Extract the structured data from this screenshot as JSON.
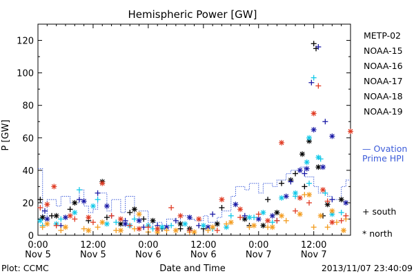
{
  "chart_data": {
    "type": "scatter",
    "title": "Hemispheric Power [GW]",
    "xlabel": "Date and Time",
    "ylabel": "P [GW]",
    "ylim": [
      0,
      130
    ],
    "xlim_hours": [
      0,
      68
    ],
    "yticks": [
      0,
      20,
      40,
      60,
      80,
      100,
      120
    ],
    "xticks": [
      {
        "hour": 0,
        "time": "0:00",
        "date": "Nov 5"
      },
      {
        "hour": 12,
        "time": "12:00",
        "date": "Nov 5"
      },
      {
        "hour": 24,
        "time": "0:00",
        "date": "Nov 6"
      },
      {
        "hour": 36,
        "time": "12:00",
        "date": "Nov 6"
      },
      {
        "hour": 48,
        "time": "0:00",
        "date": "Nov 7"
      },
      {
        "hour": 60,
        "time": "12:00",
        "date": "Nov 7"
      }
    ],
    "footer_left": "Plot: CCMC",
    "footer_right": "2013/11/07 23:40:09",
    "marker_legend": {
      "south": "+  south",
      "north": "*  north"
    },
    "ovation": {
      "label1": "— Ovation",
      "label2": "Prime HPI",
      "color": "#3b5bd9",
      "x": [
        0,
        1,
        1,
        2,
        2,
        4,
        4,
        5,
        5,
        7,
        7,
        9,
        9,
        10,
        10,
        11,
        11,
        12,
        12,
        13,
        13,
        15,
        15,
        16,
        16,
        18,
        18,
        19,
        19,
        21,
        21,
        22,
        22,
        24,
        24,
        25,
        25,
        27,
        27,
        28,
        28,
        30,
        30,
        31,
        31,
        33,
        33,
        34,
        34,
        36,
        36,
        37,
        37,
        39,
        39,
        40,
        40,
        42,
        42,
        43,
        43,
        45,
        45,
        46,
        46,
        48,
        48,
        49,
        49,
        51,
        51,
        52,
        52,
        54,
        54,
        55,
        55,
        57,
        57,
        58,
        58,
        60,
        60,
        61,
        61,
        63,
        63,
        64,
        64,
        66,
        66,
        67,
        67,
        68
      ],
      "y": [
        41,
        41,
        12,
        12,
        22,
        22,
        18,
        18,
        24,
        24,
        20,
        20,
        28,
        28,
        18,
        18,
        14,
        14,
        16,
        16,
        26,
        26,
        15,
        15,
        22,
        22,
        14,
        14,
        24,
        24,
        10,
        10,
        15,
        15,
        5,
        5,
        8,
        8,
        6,
        6,
        10,
        10,
        8,
        8,
        12,
        12,
        10,
        10,
        9,
        9,
        12,
        12,
        8,
        8,
        11,
        11,
        15,
        15,
        24,
        24,
        30,
        30,
        28,
        28,
        32,
        32,
        26,
        26,
        32,
        32,
        30,
        30,
        34,
        34,
        38,
        38,
        40,
        40,
        42,
        42,
        36,
        36,
        30,
        30,
        26,
        26,
        24,
        24,
        22,
        22,
        30,
        30,
        34,
        34
      ]
    },
    "series": [
      {
        "name": "METP-02",
        "color": "#000000",
        "south": [
          [
            0.5,
            22
          ],
          [
            3,
            12
          ],
          [
            7,
            16
          ],
          [
            11,
            9
          ],
          [
            15,
            11
          ],
          [
            20,
            14
          ],
          [
            23,
            10
          ],
          [
            27,
            4
          ],
          [
            31,
            4
          ],
          [
            36,
            4
          ],
          [
            40,
            17
          ],
          [
            46,
            6
          ],
          [
            50,
            22
          ],
          [
            53,
            32
          ],
          [
            56,
            38
          ],
          [
            58,
            30
          ],
          [
            60,
            118
          ],
          [
            60.5,
            115
          ],
          [
            62,
            12
          ]
        ],
        "north": [
          [
            1,
            11
          ],
          [
            4,
            12
          ],
          [
            8,
            20
          ],
          [
            14,
            33
          ],
          [
            18,
            7
          ],
          [
            21,
            16
          ],
          [
            25,
            9
          ],
          [
            31,
            7
          ],
          [
            33,
            4
          ],
          [
            39,
            7
          ],
          [
            45,
            10
          ],
          [
            49,
            6
          ],
          [
            52,
            14
          ],
          [
            55,
            34
          ],
          [
            57.5,
            50
          ],
          [
            59,
            58
          ],
          [
            61,
            42
          ],
          [
            63,
            19
          ],
          [
            66,
            22
          ]
        ]
      },
      {
        "name": "NOAA-15",
        "color": "#1a1aa6",
        "south": [
          [
            1.5,
            15
          ],
          [
            5,
            6
          ],
          [
            9,
            22
          ],
          [
            13,
            26
          ],
          [
            16,
            12
          ],
          [
            19,
            9
          ],
          [
            23,
            5
          ],
          [
            26,
            6
          ],
          [
            30,
            9
          ],
          [
            35,
            6
          ],
          [
            38,
            13
          ],
          [
            45,
            12
          ],
          [
            52,
            9
          ],
          [
            55,
            33
          ],
          [
            58,
            38
          ],
          [
            59.5,
            94
          ],
          [
            61,
            116
          ],
          [
            62.5,
            70
          ],
          [
            64,
            22
          ]
        ],
        "north": [
          [
            2,
            10
          ],
          [
            6,
            11
          ],
          [
            10,
            21
          ],
          [
            15,
            18
          ],
          [
            19,
            7
          ],
          [
            22,
            9
          ],
          [
            28,
            5
          ],
          [
            33,
            11
          ],
          [
            37,
            5
          ],
          [
            43,
            19
          ],
          [
            48,
            10
          ],
          [
            51,
            12
          ],
          [
            54,
            24
          ],
          [
            57,
            40
          ],
          [
            58.5,
            41
          ],
          [
            60,
            65
          ],
          [
            62,
            42
          ],
          [
            64,
            61
          ],
          [
            67,
            20
          ]
        ]
      },
      {
        "name": "NOAA-16",
        "color": "#10c8e8",
        "south": [
          [
            1,
            6
          ],
          [
            5,
            10
          ],
          [
            9,
            28
          ],
          [
            13,
            22
          ],
          [
            17,
            8
          ],
          [
            21,
            10
          ],
          [
            25,
            4
          ],
          [
            29,
            6
          ],
          [
            33,
            3
          ],
          [
            38,
            4
          ],
          [
            42,
            12
          ],
          [
            47,
            11
          ],
          [
            51,
            8
          ],
          [
            56,
            24
          ],
          [
            59,
            32
          ],
          [
            60,
            97
          ],
          [
            61.5,
            47
          ],
          [
            62.5,
            26
          ],
          [
            66,
            14
          ]
        ],
        "north": [
          [
            0.5,
            9
          ],
          [
            4,
            7
          ],
          [
            8,
            14
          ],
          [
            12,
            18
          ],
          [
            15,
            7
          ],
          [
            20,
            6
          ],
          [
            24,
            6
          ],
          [
            27,
            5
          ],
          [
            32,
            7
          ],
          [
            36,
            6
          ],
          [
            41,
            5
          ],
          [
            46,
            11
          ],
          [
            49,
            14
          ],
          [
            53,
            23
          ],
          [
            56,
            26
          ],
          [
            58.5,
            45
          ],
          [
            59,
            60
          ],
          [
            61,
            48
          ],
          [
            64,
            13
          ]
        ]
      },
      {
        "name": "NOAA-17",
        "color": "#20d88a",
        "south": [],
        "north": []
      },
      {
        "name": "NOAA-18",
        "color": "#f39c1f",
        "south": [
          [
            1,
            5
          ],
          [
            5,
            3
          ],
          [
            10,
            4
          ],
          [
            13,
            5
          ],
          [
            17,
            3
          ],
          [
            21,
            4
          ],
          [
            24,
            2
          ],
          [
            28,
            3
          ],
          [
            33,
            2
          ],
          [
            37,
            3
          ],
          [
            41,
            7
          ],
          [
            46,
            5
          ],
          [
            50,
            5
          ],
          [
            54,
            9
          ],
          [
            58,
            25
          ],
          [
            60,
            5
          ],
          [
            63,
            5
          ],
          [
            65,
            8
          ],
          [
            67,
            10
          ]
        ],
        "north": [
          [
            2,
            7
          ],
          [
            6,
            5
          ],
          [
            11,
            3
          ],
          [
            14,
            8
          ],
          [
            18,
            3
          ],
          [
            22,
            13
          ],
          [
            26,
            2
          ],
          [
            30,
            3
          ],
          [
            34,
            2
          ],
          [
            38,
            5
          ],
          [
            42,
            8
          ],
          [
            47,
            6
          ],
          [
            51,
            5
          ],
          [
            53,
            12
          ],
          [
            57,
            13
          ],
          [
            59,
            25
          ],
          [
            61.5,
            12
          ],
          [
            64,
            15
          ],
          [
            66.5,
            3
          ]
        ]
      },
      {
        "name": "NOAA-19",
        "color": "#e03a22",
        "south": [
          [
            0.5,
            17
          ],
          [
            4,
            6
          ],
          [
            8,
            10
          ],
          [
            12,
            8
          ],
          [
            16,
            12
          ],
          [
            20,
            6
          ],
          [
            24,
            5
          ],
          [
            29,
            17
          ],
          [
            33,
            3
          ],
          [
            39,
            3
          ],
          [
            44,
            11
          ],
          [
            48,
            13
          ],
          [
            52,
            9
          ],
          [
            56,
            15
          ],
          [
            59,
            20
          ],
          [
            61,
            92
          ],
          [
            63,
            21
          ],
          [
            66,
            9
          ],
          [
            67,
            12
          ]
        ],
        "north": [
          [
            2,
            19
          ],
          [
            3.5,
            30
          ],
          [
            7,
            12
          ],
          [
            11,
            11
          ],
          [
            14,
            32
          ],
          [
            18,
            10
          ],
          [
            22,
            4
          ],
          [
            26,
            4
          ],
          [
            31,
            12
          ],
          [
            35,
            10
          ],
          [
            40,
            22
          ],
          [
            44,
            16
          ],
          [
            50,
            9
          ],
          [
            53,
            57
          ],
          [
            57,
            23
          ],
          [
            60,
            75
          ],
          [
            62,
            28
          ],
          [
            64,
            8
          ],
          [
            68,
            64
          ]
        ]
      }
    ]
  }
}
